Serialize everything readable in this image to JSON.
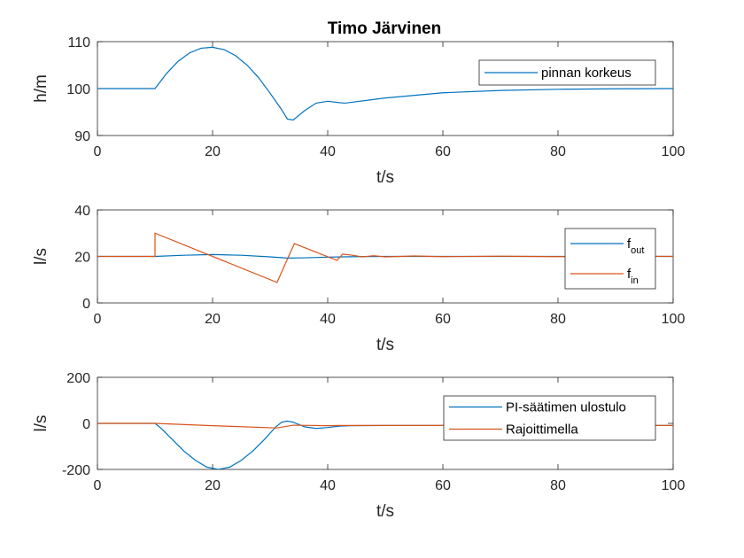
{
  "chart_data": [
    {
      "type": "line",
      "title": "Timo Järvinen",
      "xlabel": "t/s",
      "ylabel": "h/m",
      "xlim": [
        0,
        100
      ],
      "ylim": [
        90,
        110
      ],
      "xticks": [
        "0",
        "20",
        "40",
        "60",
        "80",
        "100"
      ],
      "yticks": [
        "90",
        "100",
        "110"
      ],
      "legend_position": "top-right",
      "series": [
        {
          "name": "pinnan korkeus",
          "color": "#0072BD",
          "x": [
            0,
            10,
            12,
            14,
            16,
            18,
            20,
            22,
            24,
            26,
            28,
            30,
            32,
            33,
            34,
            36,
            38,
            40,
            42,
            43,
            50,
            60,
            70,
            80,
            90,
            100
          ],
          "y": [
            100,
            100,
            103.2,
            105.8,
            107.6,
            108.6,
            108.8,
            108.3,
            107.0,
            105.0,
            102.3,
            99.0,
            95.5,
            93.5,
            93.3,
            95.3,
            96.9,
            97.3,
            97.0,
            96.9,
            98.0,
            99.1,
            99.6,
            99.85,
            99.95,
            100
          ]
        }
      ]
    },
    {
      "type": "line",
      "xlabel": "t/s",
      "ylabel": "l/s",
      "xlim": [
        0,
        100
      ],
      "ylim": [
        0,
        40
      ],
      "xticks": [
        "0",
        "20",
        "40",
        "60",
        "80",
        "100"
      ],
      "yticks": [
        "0",
        "20",
        "40"
      ],
      "legend_position": "top-right",
      "series": [
        {
          "name": "f",
          "subscript": "out",
          "color": "#0072BD",
          "x": [
            0,
            10,
            15,
            20,
            25,
            30,
            33,
            36,
            40,
            45,
            50,
            60,
            70,
            80,
            90,
            100
          ],
          "y": [
            20,
            20,
            20.5,
            20.8,
            20.5,
            19.8,
            19.3,
            19.4,
            19.7,
            19.9,
            20,
            20,
            20,
            20,
            20,
            20
          ]
        },
        {
          "name": "f",
          "subscript": "in",
          "color": "#D95319",
          "x": [
            0,
            10,
            10,
            31.2,
            34.2,
            41.6,
            42.6,
            44,
            46,
            48,
            50,
            55,
            60,
            70,
            80,
            90,
            100
          ],
          "y": [
            20,
            20,
            30,
            8.8,
            25.5,
            18.3,
            21.0,
            20.6,
            19.8,
            20.3,
            19.8,
            20.2,
            19.9,
            20.1,
            19.9,
            20.1,
            20
          ]
        }
      ]
    },
    {
      "type": "line",
      "xlabel": "t/s",
      "ylabel": "l/s",
      "xlim": [
        0,
        100
      ],
      "ylim": [
        -200,
        200
      ],
      "xticks": [
        "0",
        "20",
        "40",
        "60",
        "80",
        "100"
      ],
      "yticks": [
        "-200",
        "0",
        "200"
      ],
      "legend_position": "top-right",
      "series": [
        {
          "name": "PI-säätimen ulostulo",
          "color": "#0072BD",
          "x": [
            0,
            10,
            11,
            13,
            15,
            17,
            19,
            21,
            23,
            25,
            27,
            29,
            31,
            32,
            33,
            34,
            36,
            38,
            40,
            42,
            44,
            50,
            60,
            70,
            80,
            90,
            100
          ],
          "y": [
            0,
            0,
            -20,
            -70,
            -120,
            -160,
            -190,
            -200,
            -190,
            -160,
            -120,
            -70,
            -15,
            5,
            10,
            5,
            -15,
            -22,
            -18,
            -12,
            -10,
            -9,
            -9,
            -9,
            -9,
            -9,
            -9
          ]
        },
        {
          "name": "Rajoittimella",
          "color": "#D95319",
          "x": [
            0,
            10,
            20,
            31.2,
            34,
            40,
            42,
            50,
            60,
            70,
            80,
            90,
            100
          ],
          "y": [
            0,
            0,
            -10,
            -20,
            -8,
            -10,
            -9,
            -9,
            -9,
            -9,
            -9,
            -9,
            -9
          ]
        }
      ]
    }
  ]
}
